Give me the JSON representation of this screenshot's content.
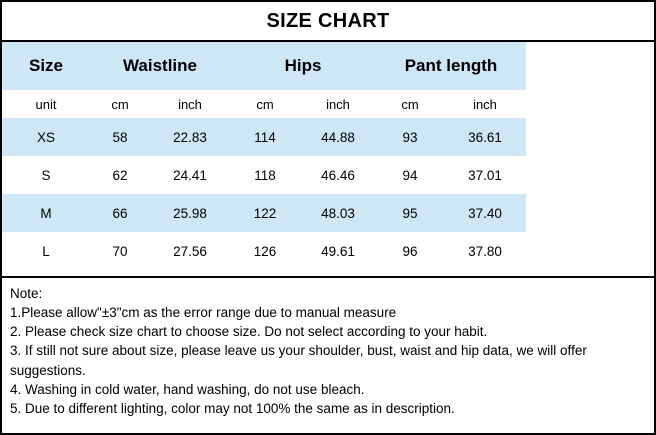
{
  "chart_data": {
    "type": "table",
    "title": "SIZE CHART",
    "column_groups": [
      "Size",
      "Waistline",
      "Hips",
      "Pant length"
    ],
    "unit_row": [
      "unit",
      "cm",
      "inch",
      "cm",
      "inch",
      "cm",
      "inch"
    ],
    "rows": [
      [
        "XS",
        "58",
        "22.83",
        "114",
        "44.88",
        "93",
        "36.61"
      ],
      [
        "S",
        "62",
        "24.41",
        "118",
        "46.46",
        "94",
        "37.01"
      ],
      [
        "M",
        "66",
        "25.98",
        "122",
        "48.03",
        "95",
        "37.40"
      ],
      [
        "L",
        "70",
        "27.56",
        "126",
        "49.61",
        "96",
        "37.80"
      ]
    ]
  },
  "notes": {
    "heading": "Note:",
    "lines": [
      "1.Please allow\"±3\"cm as the error range due to manual measure",
      "2. Please check size chart to choose size. Do not select according to your habit.",
      "3. If still not sure about size, please leave us your shoulder, bust, waist and hip data, we will offer suggestions.",
      "4. Washing in cold water, hand washing, do not use bleach.",
      "5. Due to different lighting, color may not 100% the same as in description."
    ]
  },
  "colors": {
    "row_highlight": "#cde7f6",
    "border": "#000000",
    "background": "#ffffff"
  }
}
